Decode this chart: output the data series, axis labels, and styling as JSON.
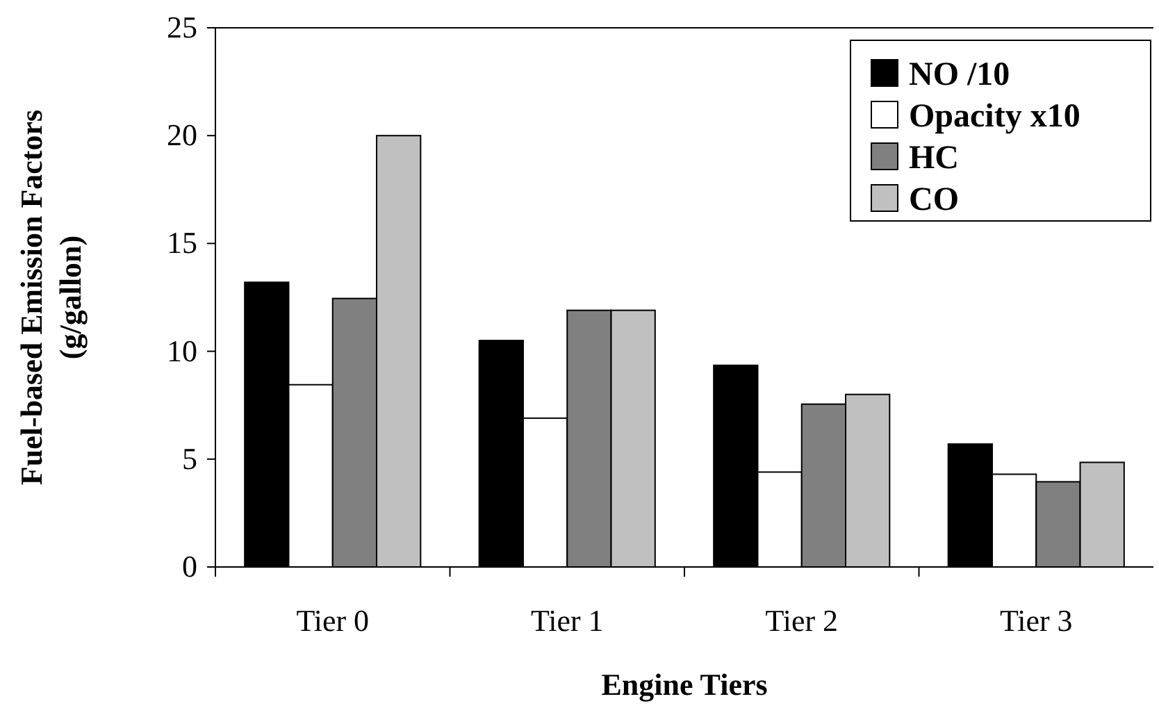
{
  "chart_data": {
    "type": "bar",
    "xlabel": "Engine Tiers",
    "ylabel": "Fuel-based Emission Factors\n(g/gallon)",
    "categories": [
      "Tier 0",
      "Tier 1",
      "Tier 2",
      "Tier 3"
    ],
    "series": [
      {
        "name": "NO /10",
        "color": "#000000",
        "values": [
          13.2,
          10.5,
          9.35,
          5.7
        ]
      },
      {
        "name": "Opacity x10",
        "color": "#ffffff",
        "values": [
          8.45,
          6.9,
          4.4,
          4.3
        ]
      },
      {
        "name": "HC",
        "color": "#808080",
        "values": [
          12.45,
          11.9,
          7.55,
          3.95
        ]
      },
      {
        "name": "CO",
        "color": "#c0c0c0",
        "values": [
          20,
          11.9,
          8,
          4.85
        ]
      }
    ],
    "ylim": [
      0,
      25
    ],
    "yticks": [
      0,
      5,
      10,
      15,
      20,
      25
    ],
    "legend": "top right",
    "grid": false
  }
}
